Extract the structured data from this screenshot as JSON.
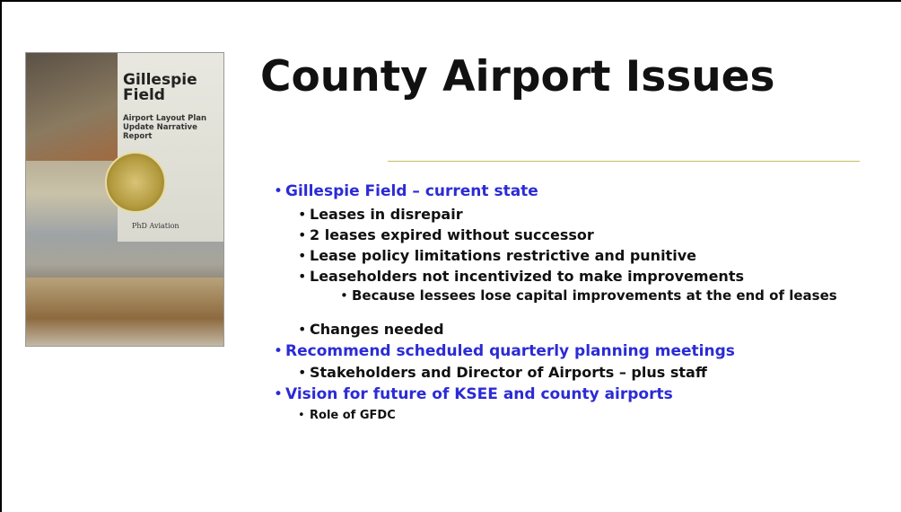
{
  "slide": {
    "title": "County Airport Issues",
    "cover": {
      "title": "Gillespie Field",
      "subtitle": "Airport Layout Plan Update Narrative Report",
      "logo": "PhD Aviation"
    },
    "bullets": [
      {
        "level": 1,
        "text": "Gillespie Field – current state"
      },
      {
        "level": 2,
        "text": "Leases in disrepair"
      },
      {
        "level": 2,
        "text": "2 leases expired without successor"
      },
      {
        "level": 2,
        "text": "Lease policy limitations restrictive and punitive"
      },
      {
        "level": 2,
        "text": "Leaseholders not incentivized to make improvements"
      },
      {
        "level": 3,
        "text": "Because lessees lose capital improvements at the end of leases"
      },
      {
        "level": 2,
        "text": "Changes needed"
      },
      {
        "level": 1,
        "text": "Recommend scheduled quarterly planning meetings"
      },
      {
        "level": 2,
        "text": "Stakeholders and Director of Airports – plus staff"
      },
      {
        "level": 1,
        "text": "Vision for future of KSEE and county airports"
      },
      {
        "level": 4,
        "text": "Role of GFDC"
      }
    ]
  }
}
